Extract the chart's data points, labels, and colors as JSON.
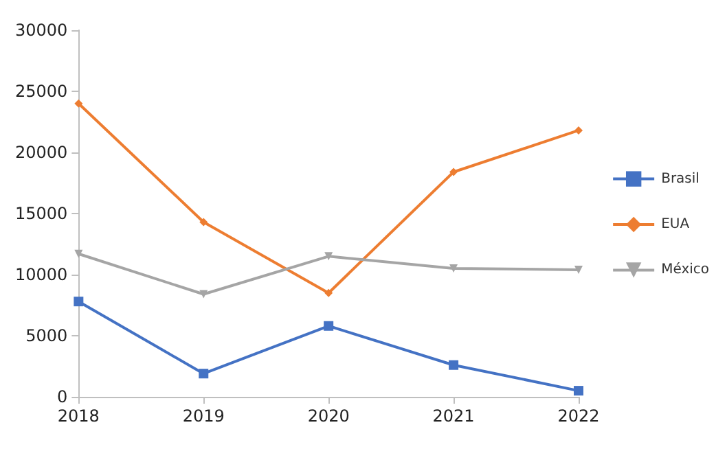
{
  "chart_data": {
    "type": "line",
    "categories": [
      "2018",
      "2019",
      "2020",
      "2021",
      "2022"
    ],
    "series": [
      {
        "name": "Brasil",
        "color": "#4472c4",
        "marker": "square",
        "values": [
          7800,
          1900,
          5800,
          2600,
          500
        ]
      },
      {
        "name": "EUA",
        "color": "#ed7d31",
        "marker": "diamond",
        "values": [
          24000,
          14300,
          8500,
          18400,
          21800
        ]
      },
      {
        "name": "México",
        "color": "#a5a5a5",
        "marker": "triangle",
        "values": [
          11700,
          8400,
          11500,
          10500,
          10400
        ]
      }
    ],
    "ylim": [
      0,
      30000
    ],
    "yticks": [
      0,
      5000,
      10000,
      15000,
      20000,
      25000,
      30000
    ],
    "grid": false,
    "legend": "right"
  }
}
